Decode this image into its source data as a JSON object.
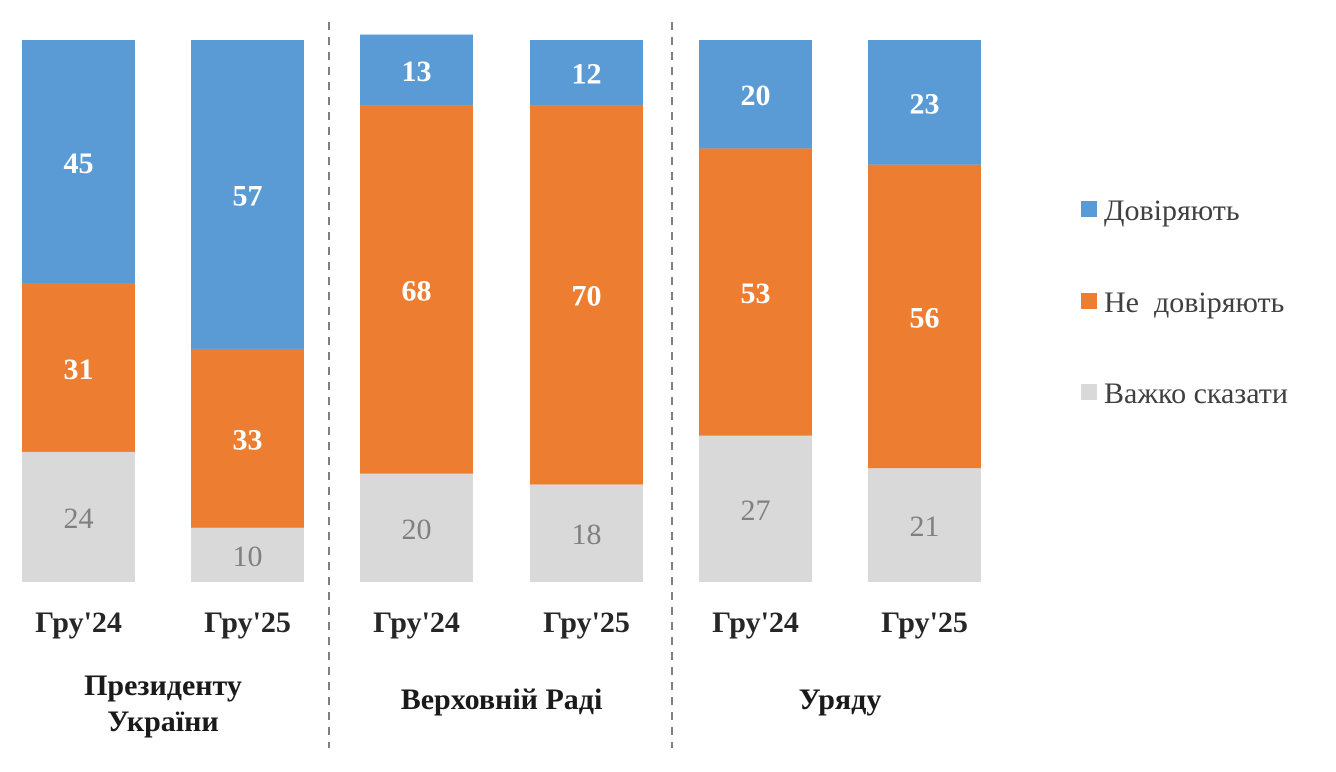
{
  "chart_data": {
    "type": "bar",
    "stacked": true,
    "stack_total": 100,
    "groups": [
      {
        "label_lines": [
          "Президенту",
          "України"
        ],
        "categories": [
          "Гру'24",
          "Гру'25"
        ]
      },
      {
        "label_lines": [
          "Верховній Раді"
        ],
        "categories": [
          "Гру'24",
          "Гру'25"
        ]
      },
      {
        "label_lines": [
          "Уряду"
        ],
        "categories": [
          "Гру'24",
          "Гру'25"
        ]
      }
    ],
    "series": [
      {
        "name": "Довіряють",
        "color": "#5b9bd5",
        "label_style": "strong",
        "values": [
          45,
          57,
          13,
          12,
          20,
          23
        ]
      },
      {
        "name": "Не  довіряють",
        "color": "#ed7d31",
        "label_style": "strong",
        "values": [
          31,
          33,
          68,
          70,
          53,
          56
        ]
      },
      {
        "name": "Важко сказати",
        "color": "#d9d9d9",
        "label_style": "light",
        "values": [
          24,
          10,
          20,
          18,
          27,
          21
        ]
      }
    ],
    "legend_position": "right",
    "group_separators": "dashed",
    "grid": false
  }
}
